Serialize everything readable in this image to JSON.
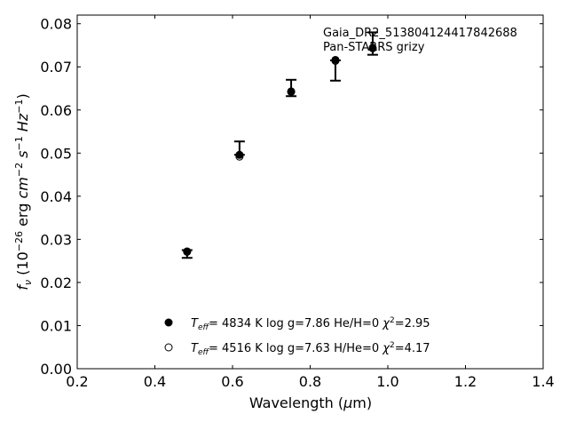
{
  "chart_data": {
    "type": "scatter",
    "title": "",
    "xlabel": "Wavelength (μm)",
    "ylabel": "f_ν (10^-26 erg cm^-2 s^-1 Hz^-1)",
    "xlim": [
      0.2,
      1.4
    ],
    "ylim": [
      0.0,
      0.082
    ],
    "xticks": [
      "0.2",
      "0.4",
      "0.6",
      "0.8",
      "1.0",
      "1.2",
      "1.4"
    ],
    "xtick_values": [
      0.2,
      0.4,
      0.6,
      0.8,
      1.0,
      1.2,
      1.4
    ],
    "yticks": [
      "0.00",
      "0.01",
      "0.02",
      "0.03",
      "0.04",
      "0.05",
      "0.06",
      "0.07",
      "0.08"
    ],
    "ytick_values": [
      0,
      0.01,
      0.02,
      0.03,
      0.04,
      0.05,
      0.06,
      0.07,
      0.08
    ],
    "grid": false,
    "annotation": [
      "Gaia_DR2_513804124417842688",
      "Pan-STARRS grizy"
    ],
    "observed": {
      "x": [
        0.483,
        0.618,
        0.751,
        0.865,
        0.961
      ],
      "y": [
        0.027,
        0.0496,
        0.0642,
        0.0715,
        0.0745
      ],
      "err_low": [
        0.0013,
        0.0,
        0.001,
        0.0047,
        0.0017
      ],
      "err_high": [
        0.0005,
        0.0031,
        0.0028,
        0.0,
        0.0035
      ]
    },
    "series": [
      {
        "name": "Teff= 4834 K log g=7.86 He/H=0 χ2=2.95",
        "marker": "filled-circle",
        "x": [
          0.483,
          0.618,
          0.751,
          0.865,
          0.961
        ],
        "y": [
          0.0271,
          0.0496,
          0.0643,
          0.0716,
          0.0744
        ]
      },
      {
        "name": "Teff= 4516 K log g=7.63 H/He=0 χ2=4.17",
        "marker": "open-circle",
        "x": [
          0.483,
          0.618,
          0.751,
          0.865,
          0.961
        ],
        "y": [
          0.0272,
          0.0492,
          0.0642,
          0.0714,
          0.0743
        ]
      }
    ],
    "legend": {
      "placement": "lower-center",
      "entries": [
        {
          "teff": "4834 K",
          "logg": "log g=7.86",
          "comp": "He/H=0",
          "chi2": "=2.95"
        },
        {
          "teff": "4516 K",
          "logg": "log g=7.63",
          "comp": "H/He=0",
          "chi2": "=4.17"
        }
      ]
    }
  }
}
